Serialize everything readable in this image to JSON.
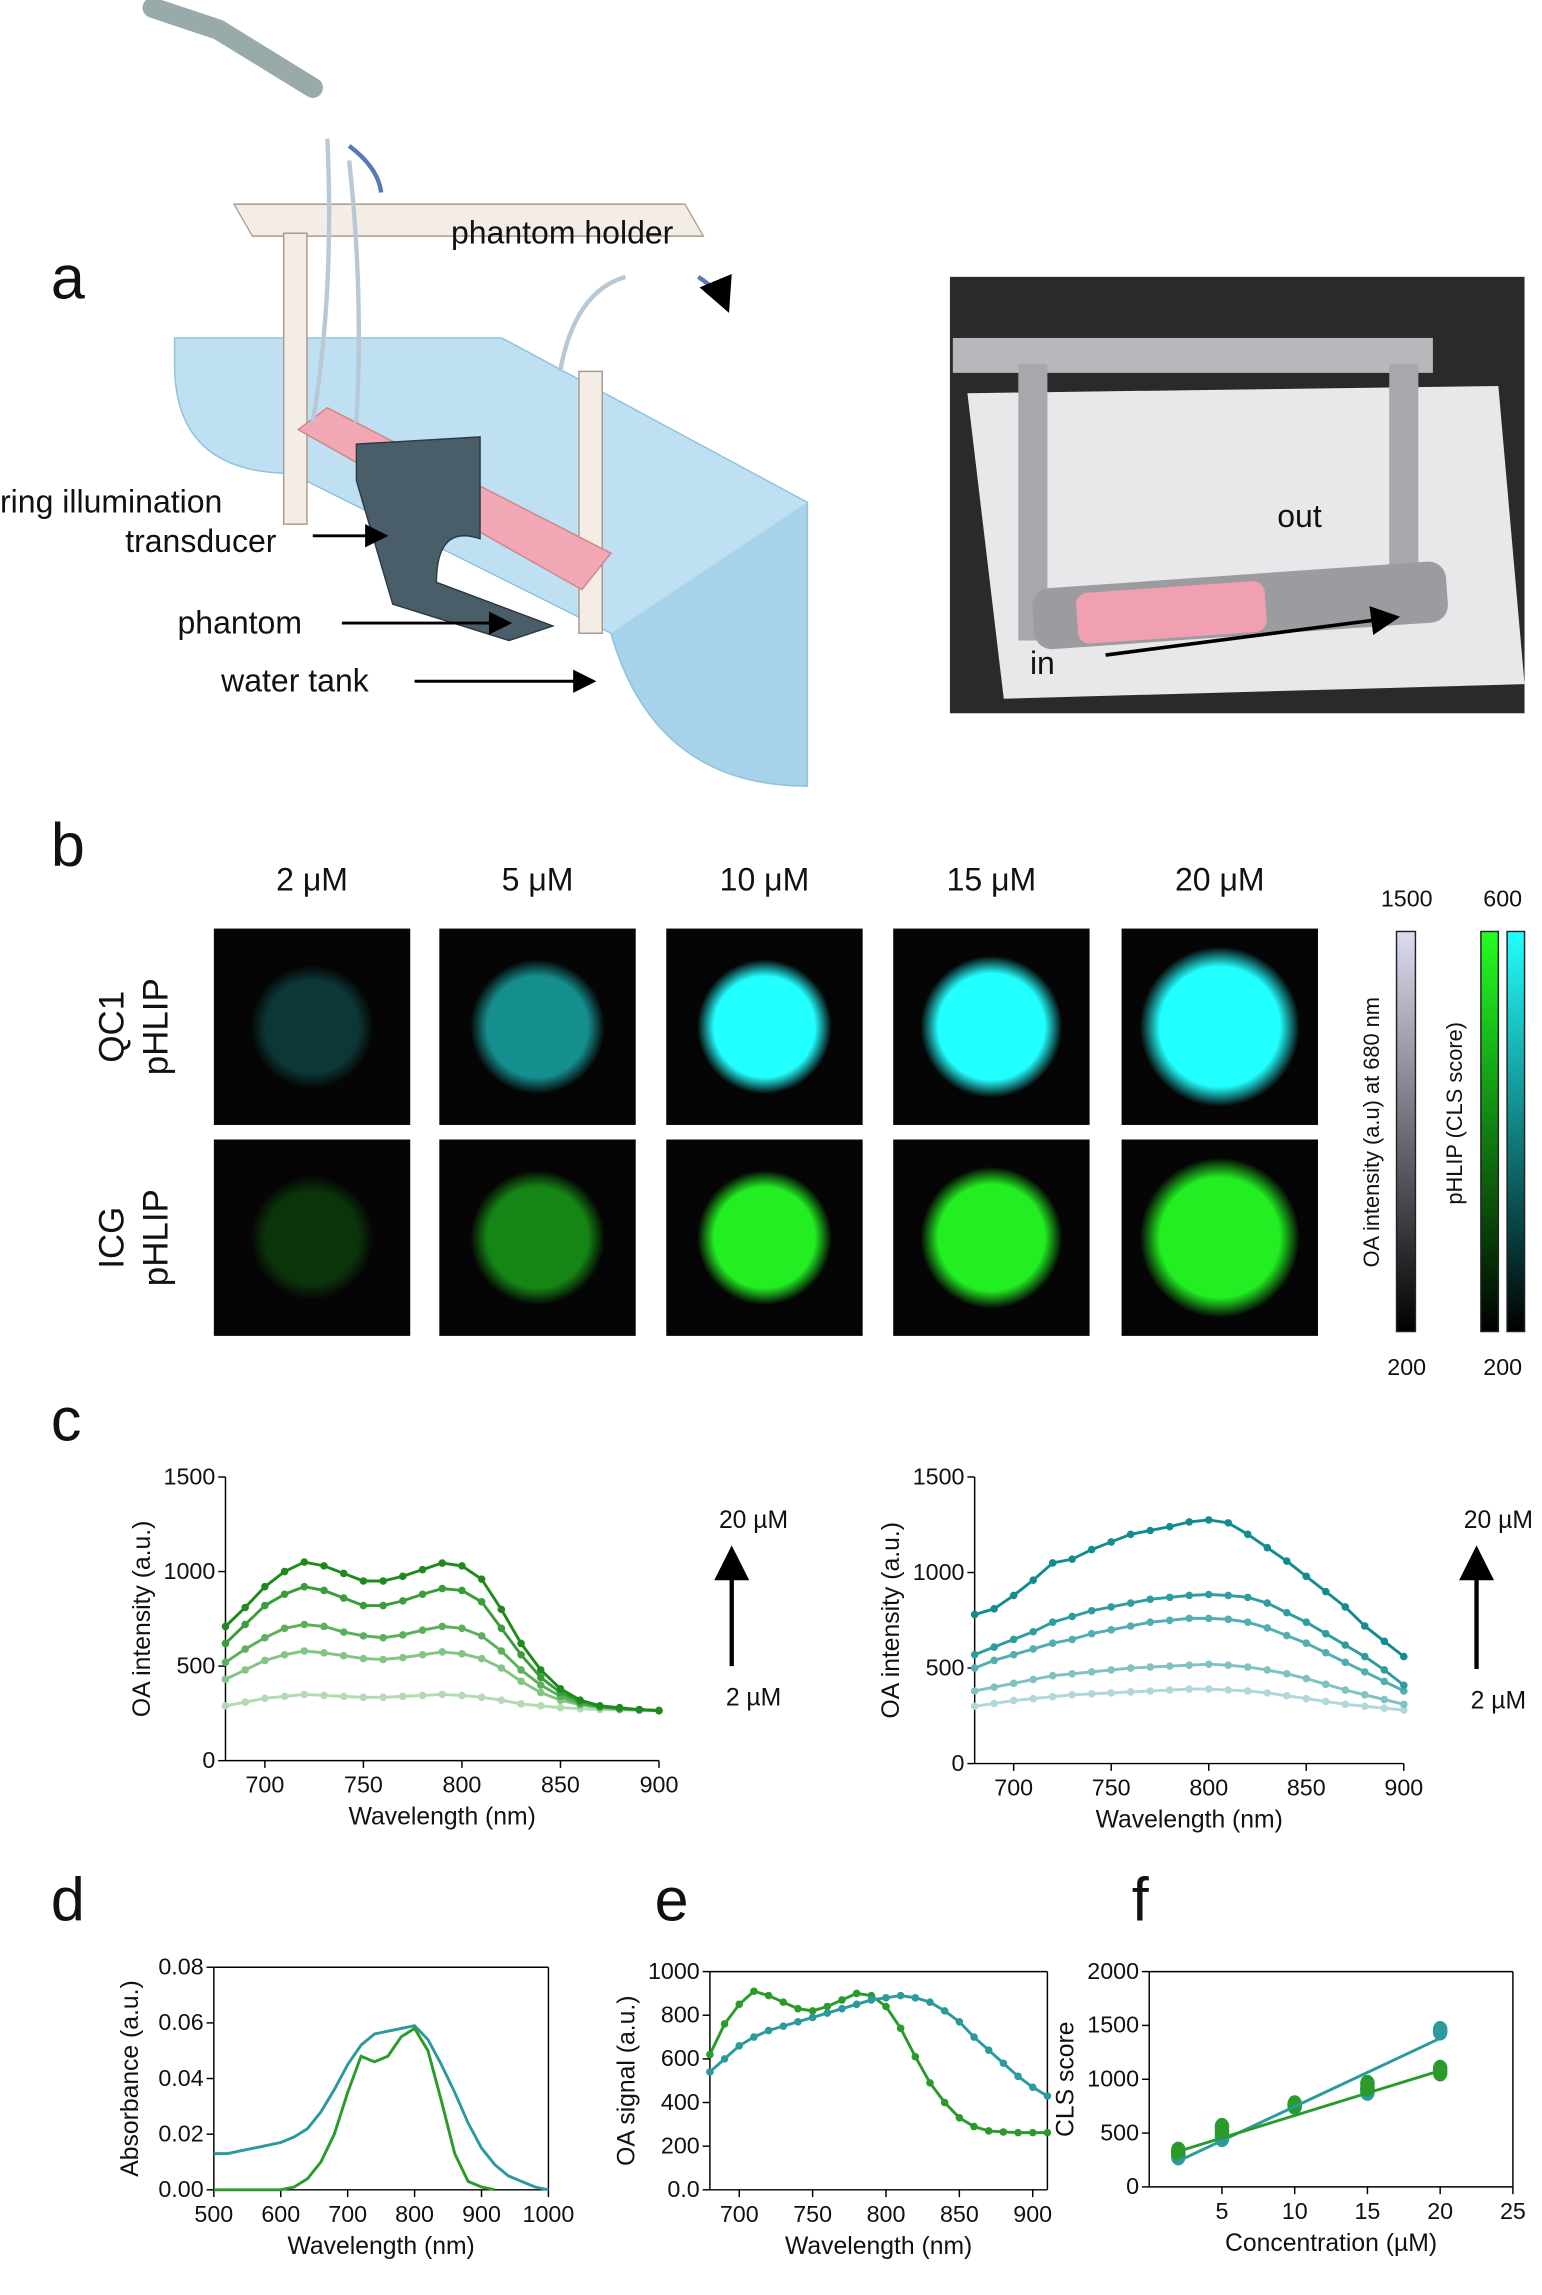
{
  "panel_labels": [
    "a",
    "b",
    "c",
    "d",
    "e",
    "f"
  ],
  "diagram": {
    "labels": [
      "phantom holder",
      "ring illumination",
      "transducer",
      "phantom",
      "water tank"
    ],
    "photo_labels": [
      "out",
      "in"
    ]
  },
  "panel_b": {
    "concentrations": [
      "2 μM",
      "5 μM",
      "10 μM",
      "15 μM",
      "20 μM"
    ],
    "rows": [
      [
        "QC1",
        "pHLIP"
      ],
      [
        "ICG",
        "pHLIP"
      ]
    ],
    "colorbars": [
      {
        "title": "OA intensity (a.u) at 680 nm",
        "max": 1500,
        "min": 200
      },
      {
        "title": "pHLIP (CLS score)",
        "max": 600,
        "min": 200
      }
    ]
  },
  "chart_data": [
    {
      "type": "line",
      "markers": true,
      "xlabel": "Wavelength (nm)",
      "ylabel": "OA intensity (a.u.)",
      "xlim": [
        680,
        900
      ],
      "xticks": [
        700,
        750,
        800,
        850,
        900
      ],
      "ylim": [
        0,
        1500
      ],
      "yticks": [
        0,
        500,
        1000,
        1500
      ],
      "annotations": [
        "20 µM",
        "2 µM"
      ],
      "x": [
        680,
        690,
        700,
        710,
        720,
        730,
        740,
        750,
        760,
        770,
        780,
        790,
        800,
        810,
        820,
        830,
        840,
        850,
        860,
        870,
        880,
        890,
        900
      ],
      "series": [
        {
          "color": "#b3dab3",
          "values": [
            290,
            310,
            330,
            340,
            350,
            345,
            340,
            335,
            335,
            340,
            345,
            350,
            345,
            335,
            320,
            300,
            290,
            280,
            275,
            270,
            268,
            266,
            265
          ]
        },
        {
          "color": "#84c484",
          "values": [
            430,
            480,
            530,
            560,
            580,
            570,
            555,
            540,
            535,
            545,
            560,
            575,
            565,
            540,
            490,
            420,
            360,
            320,
            295,
            280,
            272,
            268,
            265
          ]
        },
        {
          "color": "#5cb05c",
          "values": [
            520,
            590,
            650,
            700,
            720,
            710,
            680,
            660,
            650,
            665,
            690,
            710,
            700,
            660,
            580,
            480,
            400,
            340,
            300,
            285,
            275,
            270,
            265
          ]
        },
        {
          "color": "#3a9c3a",
          "values": [
            620,
            720,
            820,
            880,
            920,
            900,
            860,
            820,
            820,
            845,
            880,
            910,
            900,
            840,
            700,
            560,
            440,
            360,
            310,
            285,
            275,
            270,
            265
          ]
        },
        {
          "color": "#1e8a1e",
          "values": [
            710,
            810,
            920,
            1000,
            1050,
            1030,
            990,
            950,
            950,
            975,
            1010,
            1045,
            1030,
            960,
            800,
            620,
            480,
            380,
            320,
            290,
            280,
            270,
            265
          ]
        }
      ]
    },
    {
      "type": "line",
      "markers": true,
      "xlabel": "Wavelength (nm)",
      "ylabel": "OA intensity (a.u.)",
      "xlim": [
        680,
        900
      ],
      "xticks": [
        700,
        750,
        800,
        850,
        900
      ],
      "ylim": [
        0,
        1500
      ],
      "yticks": [
        0,
        500,
        1000,
        1500
      ],
      "annotations": [
        "20 µM",
        "2 µM"
      ],
      "x": [
        680,
        690,
        700,
        710,
        720,
        730,
        740,
        750,
        760,
        770,
        780,
        790,
        800,
        810,
        820,
        830,
        840,
        850,
        860,
        870,
        880,
        890,
        900
      ],
      "series": [
        {
          "color": "#b0d8d8",
          "values": [
            300,
            315,
            330,
            340,
            350,
            360,
            365,
            370,
            375,
            380,
            385,
            390,
            390,
            385,
            380,
            370,
            355,
            340,
            325,
            310,
            300,
            290,
            280
          ]
        },
        {
          "color": "#80c2c4",
          "values": [
            380,
            400,
            420,
            440,
            460,
            470,
            480,
            490,
            500,
            505,
            510,
            515,
            520,
            515,
            505,
            490,
            470,
            445,
            415,
            385,
            360,
            335,
            310
          ]
        },
        {
          "color": "#52aeb0",
          "values": [
            500,
            540,
            570,
            600,
            630,
            650,
            680,
            700,
            720,
            740,
            750,
            760,
            760,
            755,
            740,
            710,
            670,
            630,
            580,
            530,
            480,
            430,
            380
          ]
        },
        {
          "color": "#2f9da0",
          "values": [
            570,
            610,
            650,
            690,
            740,
            770,
            800,
            820,
            840,
            860,
            870,
            880,
            885,
            880,
            870,
            840,
            790,
            740,
            680,
            620,
            560,
            490,
            410
          ]
        },
        {
          "color": "#138c90",
          "values": [
            780,
            810,
            880,
            960,
            1050,
            1070,
            1120,
            1160,
            1200,
            1220,
            1240,
            1265,
            1275,
            1260,
            1200,
            1130,
            1060,
            980,
            900,
            820,
            720,
            640,
            560
          ]
        }
      ]
    },
    {
      "type": "line",
      "markers": false,
      "xlabel": "Wavelength (nm)",
      "ylabel": "Absorbance (a.u.)",
      "xlim": [
        500,
        1000
      ],
      "xticks": [
        500,
        600,
        700,
        800,
        900,
        1000
      ],
      "ylim": [
        0,
        0.08
      ],
      "yticks": [
        {
          "value": 0,
          "label": "0.00"
        },
        {
          "value": 0.02,
          "label": "0.02"
        },
        {
          "value": 0.04,
          "label": "0.04"
        },
        {
          "value": 0.06,
          "label": "0.06"
        },
        {
          "value": 0.08,
          "label": "0.08"
        }
      ],
      "x": [
        500,
        520,
        540,
        560,
        580,
        600,
        620,
        640,
        660,
        680,
        700,
        720,
        740,
        760,
        780,
        800,
        820,
        840,
        860,
        880,
        900,
        920,
        940,
        960,
        980,
        1000
      ],
      "series": [
        {
          "color": "#2a9a9c",
          "values": [
            0.013,
            0.013,
            0.014,
            0.015,
            0.016,
            0.017,
            0.019,
            0.022,
            0.028,
            0.036,
            0.045,
            0.052,
            0.056,
            0.057,
            0.058,
            0.059,
            0.054,
            0.045,
            0.035,
            0.024,
            0.015,
            0.009,
            0.005,
            0.003,
            0.001,
            0
          ]
        },
        {
          "color": "#2a9a2a",
          "values": [
            0,
            0,
            0,
            0,
            0,
            0,
            0.001,
            0.004,
            0.01,
            0.02,
            0.035,
            0.048,
            0.046,
            0.048,
            0.055,
            0.058,
            0.05,
            0.032,
            0.013,
            0.003,
            0.001,
            0,
            null,
            null,
            null,
            null
          ]
        }
      ]
    },
    {
      "type": "line",
      "markers": true,
      "xlabel": "Wavelength (nm)",
      "ylabel": "OA signal (a.u.)",
      "xlim": [
        680,
        910
      ],
      "xticks": [
        700,
        750,
        800,
        850,
        900
      ],
      "ylim": [
        0,
        1000
      ],
      "yticks": [
        {
          "value": 0,
          "label": "0.0"
        },
        200,
        400,
        600,
        800,
        1000
      ],
      "x": [
        680,
        690,
        700,
        710,
        720,
        730,
        740,
        750,
        760,
        770,
        780,
        790,
        800,
        810,
        820,
        830,
        840,
        850,
        860,
        870,
        880,
        890,
        900,
        910
      ],
      "series": [
        {
          "color": "#2a9a2a",
          "values": [
            620,
            760,
            850,
            910,
            890,
            860,
            830,
            820,
            840,
            870,
            900,
            890,
            840,
            740,
            610,
            490,
            400,
            330,
            290,
            270,
            265,
            262,
            262,
            262
          ]
        },
        {
          "color": "#2a9a9c",
          "values": [
            540,
            600,
            660,
            700,
            730,
            750,
            770,
            790,
            810,
            830,
            850,
            870,
            880,
            890,
            880,
            860,
            820,
            770,
            700,
            640,
            580,
            520,
            470,
            430
          ]
        }
      ]
    },
    {
      "type": "scatter",
      "xlabel": "Concentration (µM)",
      "ylabel": "CLS score",
      "xlim": [
        0,
        25
      ],
      "xticks": [
        5,
        10,
        15,
        20,
        25
      ],
      "ylim": [
        0,
        2000
      ],
      "yticks": [
        0,
        500,
        1000,
        1500,
        2000
      ],
      "series": [
        {
          "color": "#2a9a9c",
          "x": [
            2,
            2,
            5,
            5,
            10,
            10,
            15,
            15,
            20,
            20
          ],
          "values": [
            280,
            300,
            450,
            480,
            750,
            760,
            880,
            900,
            1440,
            1460
          ]
        },
        {
          "color": "#2a9a2a",
          "x": [
            2,
            2,
            5,
            5,
            10,
            10,
            15,
            15,
            20,
            20
          ],
          "values": [
            320,
            340,
            520,
            560,
            760,
            770,
            920,
            960,
            1060,
            1100
          ]
        },
        {
          "color": "#2a9a9c",
          "mode": "line",
          "x": [
            2,
            20
          ],
          "values": [
            240,
            1380
          ]
        },
        {
          "color": "#2a9a2a",
          "mode": "line",
          "x": [
            2,
            20
          ],
          "values": [
            330,
            1080
          ]
        }
      ]
    }
  ]
}
